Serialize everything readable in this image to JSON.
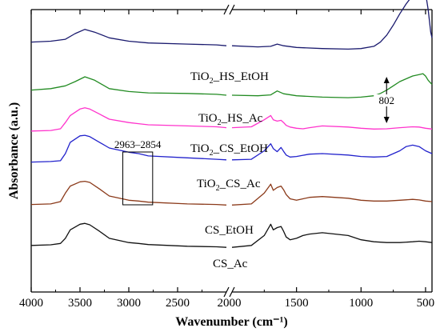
{
  "chart_data": {
    "type": "line",
    "xlabel": "Wavenumber (cm⁻¹)",
    "ylabel": "Absorbance (a.u.)",
    "x_reversed": true,
    "x_break": [
      2000,
      2000
    ],
    "xlim": [
      4000,
      450
    ],
    "xticks": [
      4000,
      3500,
      3000,
      2500,
      2000,
      1500,
      1000,
      500
    ],
    "series": [
      {
        "name": "TiO2_HS_EtOH",
        "label_main": "TiO",
        "label_sub": "2",
        "label_rest": "_HS_EtOH",
        "color": "#1a1a6e",
        "x": [
          4000,
          3800,
          3650,
          3550,
          3450,
          3350,
          3200,
          3000,
          2800,
          2400,
          2100,
          2000,
          1800,
          1700,
          1650,
          1600,
          1500,
          1300,
          1100,
          1000,
          900,
          850,
          800,
          750,
          700,
          650,
          600,
          560,
          540,
          520,
          500,
          480,
          460,
          450
        ],
        "y": [
          0.885,
          0.888,
          0.895,
          0.915,
          0.93,
          0.92,
          0.9,
          0.888,
          0.882,
          0.878,
          0.875,
          0.872,
          0.868,
          0.87,
          0.878,
          0.872,
          0.866,
          0.862,
          0.86,
          0.862,
          0.87,
          0.885,
          0.91,
          0.945,
          0.985,
          1.02,
          1.05,
          1.08,
          1.095,
          1.09,
          1.06,
          1.0,
          0.92,
          0.9
        ]
      },
      {
        "name": "TiO2_HS_Ac",
        "label_main": "TiO",
        "label_sub": "2",
        "label_rest": "_HS_Ac",
        "color": "#228b22",
        "x": [
          4000,
          3800,
          3650,
          3550,
          3450,
          3350,
          3200,
          3000,
          2800,
          2400,
          2100,
          2000,
          1800,
          1700,
          1650,
          1600,
          1500,
          1300,
          1100,
          1000,
          900,
          850,
          800,
          750,
          700,
          650,
          600,
          550,
          520,
          500,
          480,
          460,
          450
        ],
        "y": [
          0.715,
          0.72,
          0.73,
          0.745,
          0.762,
          0.75,
          0.72,
          0.71,
          0.705,
          0.703,
          0.7,
          0.697,
          0.695,
          0.698,
          0.712,
          0.702,
          0.695,
          0.69,
          0.688,
          0.69,
          0.695,
          0.703,
          0.715,
          0.73,
          0.745,
          0.755,
          0.765,
          0.77,
          0.773,
          0.765,
          0.75,
          0.74,
          0.735
        ]
      },
      {
        "name": "TiO2_CS_EtOH",
        "label_main": "TiO",
        "label_sub": "2",
        "label_rest": "_CS_EtOH",
        "color": "#ff33cc",
        "x": [
          4000,
          3800,
          3700,
          3650,
          3600,
          3500,
          3450,
          3400,
          3300,
          3200,
          3000,
          2900,
          2800,
          2400,
          2100,
          2000,
          1850,
          1750,
          1700,
          1680,
          1650,
          1620,
          1600,
          1580,
          1550,
          1500,
          1450,
          1400,
          1300,
          1100,
          1000,
          900,
          800,
          700,
          600,
          550,
          500,
          450
        ],
        "y": [
          0.57,
          0.572,
          0.578,
          0.6,
          0.625,
          0.648,
          0.652,
          0.648,
          0.63,
          0.612,
          0.6,
          0.596,
          0.592,
          0.588,
          0.585,
          0.582,
          0.585,
          0.61,
          0.625,
          0.61,
          0.605,
          0.608,
          0.6,
          0.59,
          0.584,
          0.58,
          0.578,
          0.582,
          0.588,
          0.584,
          0.58,
          0.577,
          0.578,
          0.582,
          0.585,
          0.584,
          0.58,
          0.577
        ]
      },
      {
        "name": "TiO2_CS_Ac",
        "label_main": "TiO",
        "label_sub": "2",
        "label_rest": "_CS_Ac",
        "color": "#2222cc",
        "x": [
          4000,
          3800,
          3700,
          3650,
          3600,
          3500,
          3450,
          3400,
          3300,
          3200,
          3000,
          2900,
          2800,
          2400,
          2100,
          2000,
          1850,
          1750,
          1700,
          1680,
          1650,
          1620,
          1600,
          1580,
          1550,
          1500,
          1450,
          1400,
          1300,
          1100,
          1000,
          900,
          800,
          700,
          650,
          600,
          550,
          500,
          450
        ],
        "y": [
          0.46,
          0.462,
          0.465,
          0.49,
          0.53,
          0.553,
          0.555,
          0.55,
          0.53,
          0.51,
          0.495,
          0.49,
          0.482,
          0.475,
          0.47,
          0.468,
          0.47,
          0.5,
          0.525,
          0.508,
          0.497,
          0.512,
          0.498,
          0.485,
          0.478,
          0.48,
          0.484,
          0.488,
          0.49,
          0.485,
          0.48,
          0.478,
          0.48,
          0.5,
          0.515,
          0.52,
          0.515,
          0.5,
          0.49
        ]
      },
      {
        "name": "CS_EtOH",
        "label_main": "CS_EtOH",
        "label_sub": "",
        "label_rest": "",
        "color": "#8b3a1a",
        "x": [
          4000,
          3800,
          3700,
          3650,
          3600,
          3500,
          3450,
          3400,
          3300,
          3200,
          3000,
          2900,
          2800,
          2400,
          2100,
          2000,
          1850,
          1750,
          1700,
          1680,
          1650,
          1620,
          1600,
          1580,
          1550,
          1500,
          1450,
          1400,
          1300,
          1100,
          1000,
          900,
          800,
          700,
          600,
          550,
          500,
          450
        ],
        "y": [
          0.31,
          0.312,
          0.32,
          0.35,
          0.375,
          0.39,
          0.392,
          0.388,
          0.365,
          0.34,
          0.325,
          0.322,
          0.318,
          0.312,
          0.31,
          0.308,
          0.312,
          0.35,
          0.382,
          0.36,
          0.37,
          0.375,
          0.362,
          0.345,
          0.33,
          0.325,
          0.33,
          0.335,
          0.338,
          0.332,
          0.325,
          0.322,
          0.322,
          0.325,
          0.328,
          0.326,
          0.322,
          0.32
        ]
      },
      {
        "name": "CS_Ac",
        "label_main": "CS_Ac",
        "label_sub": "",
        "label_rest": "",
        "color": "#111111",
        "x": [
          4000,
          3800,
          3700,
          3650,
          3600,
          3500,
          3450,
          3400,
          3300,
          3200,
          3000,
          2900,
          2800,
          2400,
          2100,
          2000,
          1850,
          1750,
          1700,
          1680,
          1650,
          1620,
          1600,
          1580,
          1550,
          1500,
          1450,
          1400,
          1300,
          1100,
          1000,
          900,
          800,
          700,
          600,
          550,
          500,
          450
        ],
        "y": [
          0.165,
          0.167,
          0.172,
          0.19,
          0.22,
          0.24,
          0.243,
          0.238,
          0.215,
          0.19,
          0.175,
          0.172,
          0.168,
          0.162,
          0.16,
          0.158,
          0.165,
          0.2,
          0.24,
          0.22,
          0.228,
          0.232,
          0.215,
          0.195,
          0.185,
          0.19,
          0.2,
          0.205,
          0.21,
          0.2,
          0.185,
          0.178,
          0.175,
          0.175,
          0.178,
          0.18,
          0.178,
          0.175
        ]
      }
    ],
    "annotations": {
      "range_label": "2963–2854",
      "range_x": [
        2963,
        2854
      ],
      "peak_label": "802",
      "peak_x": 802
    }
  }
}
